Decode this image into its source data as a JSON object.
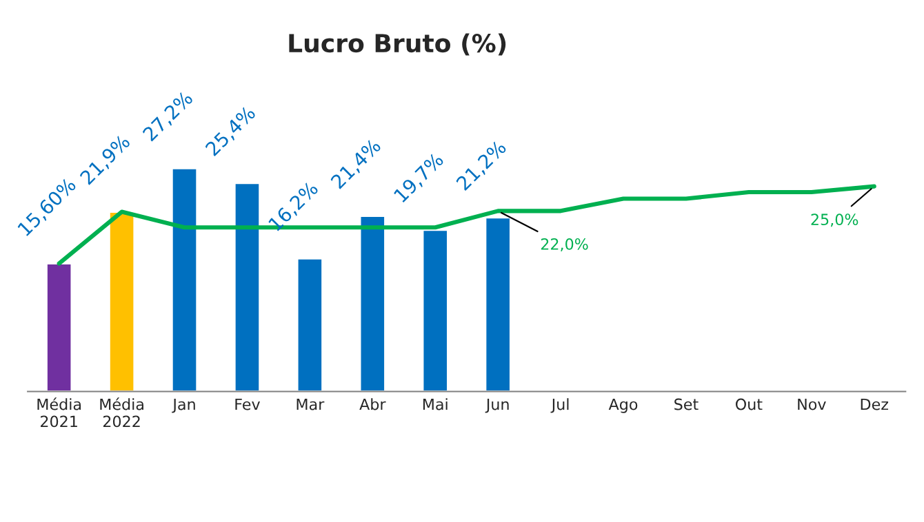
{
  "chart_data": {
    "type": "bar",
    "title": "Lucro Bruto (%)",
    "categories": [
      "Média\n2021",
      "Média\n2022",
      "Jan",
      "Fev",
      "Mar",
      "Abr",
      "Mai",
      "Jun",
      "Jul",
      "Ago",
      "Set",
      "Out",
      "Nov",
      "Dez"
    ],
    "series": [
      {
        "colors": [
          "#7030a0",
          "#ffc000",
          "#0070c0",
          "#0070c0",
          "#0070c0",
          "#0070c0",
          "#0070c0",
          "#0070c0",
          null,
          null,
          null,
          null,
          null,
          null
        ],
        "values": [
          15.6,
          21.9,
          27.2,
          25.4,
          16.2,
          21.4,
          19.7,
          21.2,
          null,
          null,
          null,
          null,
          null,
          null
        ],
        "value_labels": [
          "15,60%",
          "21,9%",
          "27,2%",
          "25,4%",
          "16,2%",
          "21,4%",
          "19,7%",
          "21,2%",
          null,
          null,
          null,
          null,
          null,
          null
        ]
      },
      {
        "type": "line",
        "color": "#00b050",
        "values": [
          15.6,
          21.9,
          20,
          20,
          20,
          20,
          20,
          22,
          22,
          23.5,
          23.5,
          24.3,
          24.3,
          25
        ],
        "value_labels": [
          null,
          null,
          null,
          null,
          null,
          null,
          null,
          "22,0%",
          null,
          null,
          null,
          null,
          null,
          "25,0%"
        ]
      }
    ],
    "grid": false,
    "legend": false
  }
}
